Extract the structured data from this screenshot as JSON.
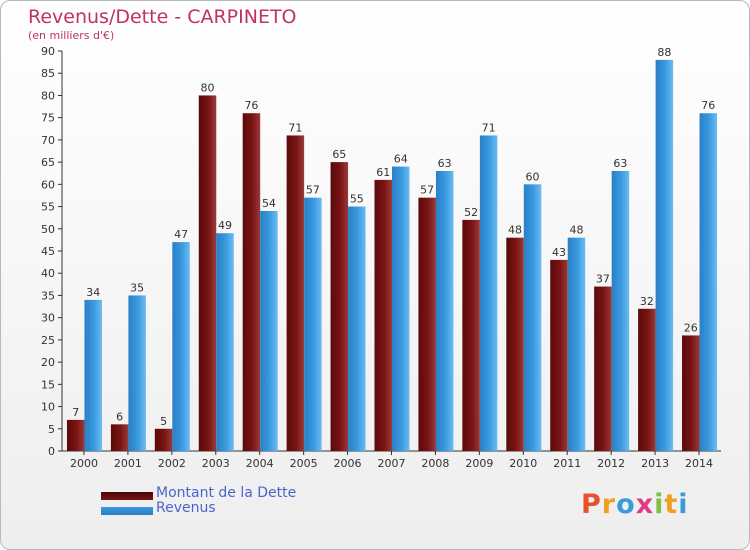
{
  "title": "Revenus/Dette - CARPINETO",
  "subtitle": "(en milliers d'€)",
  "logo": {
    "text": "Proxiti",
    "colors": [
      "#e8502e",
      "#f0a020",
      "#3a9bd8",
      "#e23a8a",
      "#7cc142",
      "#f0a020",
      "#3a9bd8"
    ]
  },
  "colors": {
    "dette": "#7a1414",
    "revenus": "#3a9ae0",
    "axis": "#333333",
    "grid": "#d0d0d0"
  },
  "chart_data": {
    "type": "bar",
    "title": "Revenus/Dette - CARPINETO",
    "subtitle": "(en milliers d'€)",
    "categories": [
      "2000",
      "2001",
      "2002",
      "2003",
      "2004",
      "2005",
      "2006",
      "2007",
      "2008",
      "2009",
      "2010",
      "2011",
      "2012",
      "2013",
      "2014"
    ],
    "series": [
      {
        "name": "Montant de la Dette",
        "values": [
          7,
          6,
          5,
          80,
          76,
          71,
          65,
          61,
          57,
          52,
          48,
          43,
          37,
          32,
          26
        ]
      },
      {
        "name": "Revenus",
        "values": [
          34,
          35,
          47,
          49,
          54,
          57,
          55,
          64,
          63,
          71,
          60,
          48,
          63,
          88,
          76
        ]
      }
    ],
    "ylim": [
      0,
      90
    ],
    "yticks": [
      0,
      5,
      10,
      15,
      20,
      25,
      30,
      35,
      40,
      45,
      50,
      55,
      60,
      65,
      70,
      75,
      80,
      85,
      90
    ],
    "grid": false,
    "legend_position": "bottom-left"
  }
}
